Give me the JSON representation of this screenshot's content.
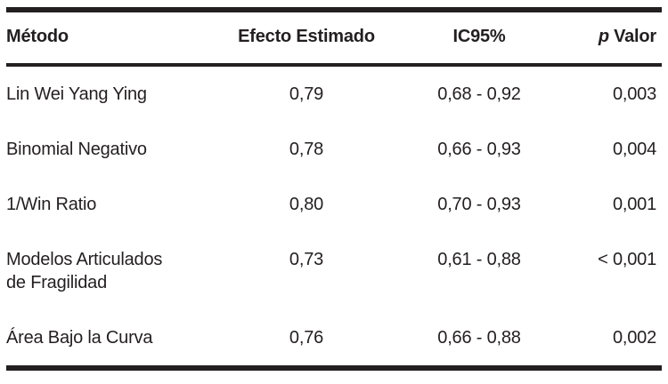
{
  "colors": {
    "ink": "#231f20",
    "background": "#ffffff"
  },
  "table": {
    "headers": {
      "metodo": "Método",
      "efecto_estimado": "Efecto Estimado",
      "ic95": "IC95%",
      "p_valor_italic": "p",
      "p_valor_rest": "Valor"
    },
    "rows": [
      {
        "metodo": "Lin Wei Yang Ying",
        "efecto_estimado": "0,79",
        "ic95": "0,68 - 0,92",
        "p_valor": "0,003"
      },
      {
        "metodo": "Binomial Negativo",
        "efecto_estimado": "0,78",
        "ic95": "0,66 - 0,93",
        "p_valor": "0,004"
      },
      {
        "metodo": "1/Win Ratio",
        "efecto_estimado": "0,80",
        "ic95": "0,70 - 0,93",
        "p_valor": "0,001"
      },
      {
        "metodo": "Modelos Articulados\nde Fragilidad",
        "efecto_estimado": "0,73",
        "ic95": "0,61 - 0,88",
        "p_valor": "< 0,001"
      },
      {
        "metodo": "Área Bajo la Curva",
        "efecto_estimado": "0,76",
        "ic95": "0,66 - 0,88",
        "p_valor": "0,002"
      }
    ]
  }
}
